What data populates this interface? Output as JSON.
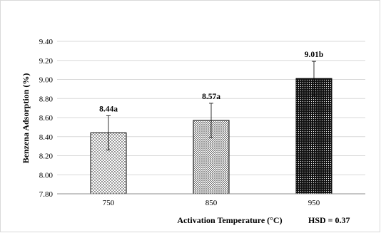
{
  "chart_data": {
    "type": "bar",
    "title": "",
    "xlabel": "Activation Temperature (°C)",
    "ylabel": "Benzena Adsorption (%)",
    "categories": [
      "750",
      "850",
      "950"
    ],
    "series": [
      {
        "values": [
          8.44,
          8.57,
          9.01
        ],
        "error": [
          0.18,
          0.18,
          0.18
        ],
        "data_labels": [
          "8.44a",
          "8.57a",
          "9.01b"
        ],
        "patterns": [
          "sparse-dots",
          "dense-dots",
          "dark-dense"
        ]
      }
    ],
    "ylim": [
      7.8,
      9.4
    ],
    "yticks": [
      "7.80",
      "8.00",
      "8.20",
      "8.40",
      "8.60",
      "8.80",
      "9.00",
      "9.20",
      "9.40"
    ],
    "grid": true,
    "legend": "none",
    "annotation": "HSD = 0.37",
    "colors": {
      "bar_stroke": "#000000",
      "grid": "#d9d9d9",
      "axis": "#8c8c8c"
    }
  }
}
